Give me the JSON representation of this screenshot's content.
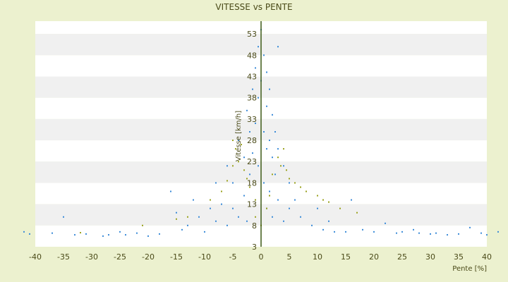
{
  "chart_data": {
    "type": "scatter",
    "title": "VITESSE vs PENTE",
    "xlabel": "Pente [%]",
    "ylabel": "Vitesse [km/h]",
    "xlim": [
      -40,
      40
    ],
    "ylim": [
      3,
      56
    ],
    "x_ticks": [
      "-40",
      "-35",
      "-30",
      "-25",
      "-20",
      "-15",
      "-10",
      "-5",
      "0",
      "5",
      "10",
      "15",
      "20",
      "25",
      "30",
      "35",
      "40"
    ],
    "y_ticks": [
      "3",
      "8",
      "13",
      "18",
      "23",
      "28",
      "33",
      "38",
      "43",
      "48",
      "53"
    ],
    "grid": "horizontal bands",
    "legend": "none",
    "colors": {
      "background": "#ecf1cf",
      "band_light": "#ffffff",
      "band_dark": "#f0f0f0",
      "series_main": "#3b8bd8",
      "series_secondary": "#9aa21e",
      "zero_line": "#3d5a17",
      "text": "#4a4a18"
    },
    "series": [
      {
        "color": "#3b8bd8",
        "points": [
          [
            -42,
            6.5
          ],
          [
            -41,
            6
          ],
          [
            -37,
            6.2
          ],
          [
            -35,
            10
          ],
          [
            -33,
            5.8
          ],
          [
            -31,
            6
          ],
          [
            -28,
            5.5
          ],
          [
            -27,
            5.8
          ],
          [
            -25,
            6.5
          ],
          [
            -24,
            5.8
          ],
          [
            -22,
            6.2
          ],
          [
            -20,
            5.5
          ],
          [
            -18,
            6
          ],
          [
            -16,
            16
          ],
          [
            -15,
            11
          ],
          [
            -14,
            7
          ],
          [
            -13,
            8
          ],
          [
            -12,
            14
          ],
          [
            -11,
            10
          ],
          [
            -10,
            6.5
          ],
          [
            -9,
            12
          ],
          [
            -8,
            18
          ],
          [
            -8,
            9
          ],
          [
            -7,
            13
          ],
          [
            -6,
            8
          ],
          [
            -6,
            22
          ],
          [
            -5,
            18
          ],
          [
            -5,
            12
          ],
          [
            -4,
            10
          ],
          [
            -4,
            28
          ],
          [
            -3,
            15
          ],
          [
            -3,
            24
          ],
          [
            -2.5,
            9
          ],
          [
            -2.5,
            35
          ],
          [
            -2,
            30
          ],
          [
            -2,
            20
          ],
          [
            -1.5,
            40
          ],
          [
            -1.5,
            25
          ],
          [
            -1,
            45
          ],
          [
            -1,
            32
          ],
          [
            -1,
            14
          ],
          [
            -0.5,
            50
          ],
          [
            -0.5,
            38
          ],
          [
            -0.5,
            22
          ],
          [
            0,
            54
          ],
          [
            0,
            42
          ],
          [
            0.5,
            48
          ],
          [
            0.5,
            30
          ],
          [
            0.5,
            18
          ],
          [
            1,
            44
          ],
          [
            1,
            36
          ],
          [
            1,
            26
          ],
          [
            1,
            12
          ],
          [
            1.5,
            40
          ],
          [
            1.5,
            28
          ],
          [
            1.5,
            16
          ],
          [
            2,
            34
          ],
          [
            2,
            24
          ],
          [
            2,
            10
          ],
          [
            2.5,
            30
          ],
          [
            2.5,
            20
          ],
          [
            3,
            50
          ],
          [
            3,
            26
          ],
          [
            3,
            14
          ],
          [
            4,
            22
          ],
          [
            4,
            9
          ],
          [
            5,
            18
          ],
          [
            5,
            12
          ],
          [
            6,
            14
          ],
          [
            7,
            10
          ],
          [
            8,
            16
          ],
          [
            9,
            8
          ],
          [
            10,
            12
          ],
          [
            11,
            7
          ],
          [
            12,
            9
          ],
          [
            13,
            6.5
          ],
          [
            15,
            6.5
          ],
          [
            16,
            14
          ],
          [
            18,
            7
          ],
          [
            20,
            6.5
          ],
          [
            22,
            8.5
          ],
          [
            24,
            6.2
          ],
          [
            25,
            6.5
          ],
          [
            27,
            7
          ],
          [
            28,
            6.2
          ],
          [
            30,
            6
          ],
          [
            31,
            6.2
          ],
          [
            33,
            5.8
          ],
          [
            35,
            6
          ],
          [
            37,
            7.5
          ],
          [
            39,
            6.2
          ],
          [
            40,
            5.8
          ],
          [
            42,
            6.5
          ]
        ]
      },
      {
        "color": "#9aa21e",
        "points": [
          [
            -32,
            6.3
          ],
          [
            -21,
            8
          ],
          [
            -15,
            9.5
          ],
          [
            -13,
            10
          ],
          [
            -9,
            14
          ],
          [
            -7,
            16
          ],
          [
            -6,
            18.5
          ],
          [
            -5,
            22
          ],
          [
            -5,
            28
          ],
          [
            -4.5,
            26
          ],
          [
            -4,
            23
          ],
          [
            -3.5,
            27
          ],
          [
            -3,
            21
          ],
          [
            -2.5,
            19
          ],
          [
            -2,
            17
          ],
          [
            -1,
            14
          ],
          [
            -1,
            10
          ],
          [
            0,
            8
          ],
          [
            1,
            12
          ],
          [
            1.5,
            15
          ],
          [
            2,
            20
          ],
          [
            3,
            24
          ],
          [
            3.5,
            22
          ],
          [
            4,
            26
          ],
          [
            4.5,
            21
          ],
          [
            5,
            19
          ],
          [
            6,
            18
          ],
          [
            7,
            17
          ],
          [
            8,
            16
          ],
          [
            10,
            15
          ],
          [
            11,
            14
          ],
          [
            12,
            13.5
          ],
          [
            14,
            12
          ],
          [
            17,
            11
          ]
        ]
      }
    ]
  }
}
